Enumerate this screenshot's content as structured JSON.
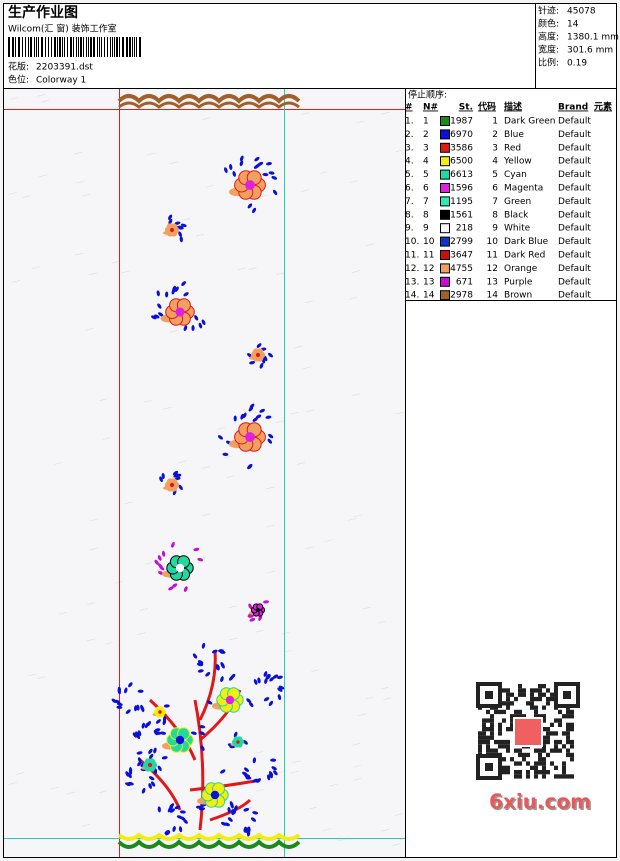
{
  "header": {
    "title": "生产作业图",
    "studio": "Wilcom(汇 窗) 装饰工作室",
    "design_file": {
      "label": "花版:",
      "value": "2203391.dst"
    },
    "colorway": {
      "label": "色位:",
      "value": "Colorway 1"
    }
  },
  "info": [
    {
      "label": "针迹:",
      "value": "45078"
    },
    {
      "label": "颜色:",
      "value": "14"
    },
    {
      "label": "高度:",
      "value": "1380.1 mm"
    },
    {
      "label": "宽度:",
      "value": "301.6 mm"
    },
    {
      "label": "比例:",
      "value": "0.19"
    }
  ],
  "stop_sequence": {
    "title": "停止顺序:",
    "columns": [
      "#",
      "N#",
      "St.",
      "代码",
      "描述",
      "Brand",
      "元素"
    ],
    "rows": [
      {
        "index": "1.",
        "needle": "1",
        "color": "#1a8a1a",
        "stitches": "1987",
        "code": "1",
        "description": "Dark Green",
        "brand": "Default"
      },
      {
        "index": "2.",
        "needle": "2",
        "color": "#0a10d8",
        "stitches": "6970",
        "code": "2",
        "description": "Blue",
        "brand": "Default"
      },
      {
        "index": "3.",
        "needle": "3",
        "color": "#e01818",
        "stitches": "3586",
        "code": "3",
        "description": "Red",
        "brand": "Default"
      },
      {
        "index": "4.",
        "needle": "4",
        "color": "#f2ee10",
        "stitches": "6500",
        "code": "4",
        "description": "Yellow",
        "brand": "Default"
      },
      {
        "index": "5.",
        "needle": "5",
        "color": "#20d8a0",
        "stitches": "6613",
        "code": "5",
        "description": "Cyan",
        "brand": "Default"
      },
      {
        "index": "6.",
        "needle": "6",
        "color": "#e020e0",
        "stitches": "1596",
        "code": "6",
        "description": "Magenta",
        "brand": "Default"
      },
      {
        "index": "7.",
        "needle": "7",
        "color": "#30e8b8",
        "stitches": "1195",
        "code": "7",
        "description": "Green",
        "brand": "Default"
      },
      {
        "index": "8.",
        "needle": "8",
        "color": "#000000",
        "stitches": "1561",
        "code": "8",
        "description": "Black",
        "brand": "Default"
      },
      {
        "index": "9.",
        "needle": "9",
        "color": "#f8f8f8",
        "stitches": "218",
        "code": "9",
        "description": "White",
        "brand": "Default"
      },
      {
        "index": "10.",
        "needle": "10",
        "color": "#1034c8",
        "stitches": "2799",
        "code": "10",
        "description": "Dark Blue",
        "brand": "Default"
      },
      {
        "index": "11.",
        "needle": "11",
        "color": "#c81010",
        "stitches": "3647",
        "code": "11",
        "description": "Dark Red",
        "brand": "Default"
      },
      {
        "index": "12.",
        "needle": "12",
        "color": "#f0a060",
        "stitches": "4755",
        "code": "12",
        "description": "Orange",
        "brand": "Default"
      },
      {
        "index": "13.",
        "needle": "13",
        "color": "#c010d0",
        "stitches": "671",
        "code": "13",
        "description": "Purple",
        "brand": "Default"
      },
      {
        "index": "14.",
        "needle": "14",
        "color": "#a0602c",
        "stitches": "2978",
        "code": "14",
        "description": "Brown",
        "brand": "Default"
      }
    ]
  },
  "watermark": "6xiu.com"
}
